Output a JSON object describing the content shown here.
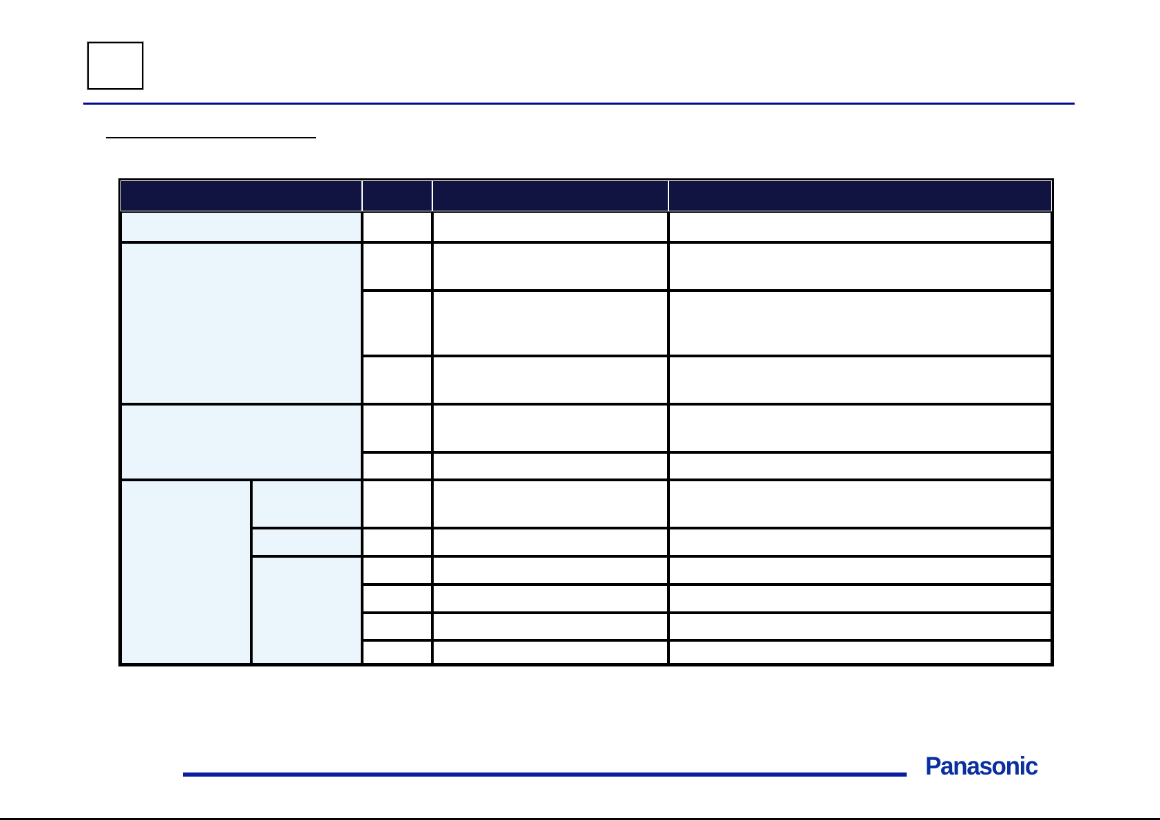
{
  "header": {
    "slide_number_box": ""
  },
  "section_title": "",
  "table": {
    "columns": [
      "",
      "",
      "",
      ""
    ],
    "rows": []
  },
  "footer": {
    "logo_text": "Panasonic"
  },
  "colors": {
    "rule_blue": "#000a8c",
    "footer_blue": "#0a1fa0",
    "header_fill": "#111340",
    "label_fill": "#eaf5fc",
    "logo_blue": "#0a2fa0"
  }
}
